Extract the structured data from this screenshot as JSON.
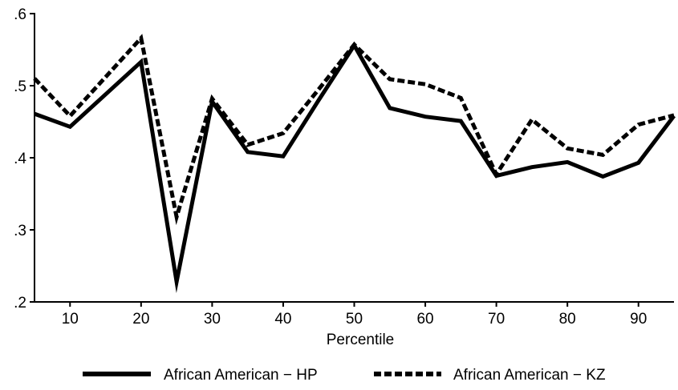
{
  "chart_data": {
    "type": "line",
    "xlabel": "Percentile",
    "ylabel": "",
    "xlim": [
      5,
      95
    ],
    "ylim": [
      0.2,
      0.6
    ],
    "x_ticks": [
      10,
      20,
      30,
      40,
      50,
      60,
      70,
      80,
      90
    ],
    "x_tick_labels": [
      "10",
      "20",
      "30",
      "40",
      "50",
      "60",
      "70",
      "80",
      "90"
    ],
    "y_ticks": [
      0.2,
      0.3,
      0.4,
      0.5,
      0.6
    ],
    "y_tick_labels": [
      ".2",
      ".3",
      ".4",
      ".5",
      ".6"
    ],
    "grid": false,
    "legend_position": "bottom",
    "x": [
      5,
      10,
      15,
      20,
      25,
      30,
      35,
      40,
      45,
      50,
      55,
      60,
      65,
      70,
      75,
      80,
      85,
      90,
      95
    ],
    "series": [
      {
        "name": "African American − HP",
        "style": "solid",
        "color": "#000000",
        "values": [
          0.461,
          0.443,
          0.488,
          0.533,
          0.228,
          0.478,
          0.408,
          0.402,
          0.48,
          0.556,
          0.469,
          0.457,
          0.451,
          0.375,
          0.387,
          0.394,
          0.374,
          0.393,
          0.458
        ]
      },
      {
        "name": "African American − KZ",
        "style": "dashed",
        "color": "#000000",
        "values": [
          0.51,
          0.458,
          0.512,
          0.566,
          0.318,
          0.482,
          0.418,
          0.434,
          0.495,
          0.557,
          0.509,
          0.502,
          0.483,
          0.377,
          0.453,
          0.413,
          0.404,
          0.446,
          0.459
        ]
      }
    ]
  }
}
